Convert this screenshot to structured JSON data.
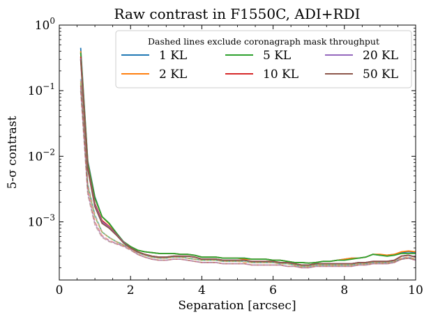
{
  "chart_data": {
    "type": "line",
    "title": "Raw contrast in F1550C, ADI+RDI",
    "xlabel": "Separation [arcsec]",
    "ylabel": "5-σ contrast",
    "xlim": [
      0,
      10
    ],
    "ylim": [
      0.00013,
      1.0
    ],
    "yscale": "log",
    "grid": false,
    "x_ticks": [
      0,
      2,
      4,
      6,
      8,
      10
    ],
    "x_tick_labels": [
      "0",
      "2",
      "4",
      "6",
      "8",
      "10"
    ],
    "y_ticks": [
      0.001,
      0.01,
      0.1,
      1
    ],
    "y_tick_labels": [
      {
        "base": "10",
        "exp": "−3"
      },
      {
        "base": "10",
        "exp": "−2"
      },
      {
        "base": "10",
        "exp": "−1"
      },
      {
        "base": "10",
        "exp": "0"
      }
    ],
    "legend": {
      "title": "Dashed lines exclude coronagraph mask throughput",
      "placement": "top-right",
      "columns": 3
    },
    "x": [
      0.6,
      0.8,
      1.0,
      1.2,
      1.4,
      1.6,
      1.8,
      2.0,
      2.2,
      2.4,
      2.6,
      2.8,
      3.0,
      3.2,
      3.4,
      3.6,
      3.8,
      4.0,
      4.2,
      4.4,
      4.6,
      4.8,
      5.0,
      5.2,
      5.4,
      5.6,
      5.8,
      6.0,
      6.2,
      6.4,
      6.6,
      6.8,
      7.0,
      7.2,
      7.4,
      7.6,
      7.8,
      8.0,
      8.2,
      8.4,
      8.6,
      8.8,
      9.0,
      9.2,
      9.4,
      9.6,
      9.8,
      10.0
    ],
    "series": [
      {
        "name": "1 KL",
        "color": "#1f77b4",
        "values": [
          0.45,
          0.0085,
          0.0024,
          0.0012,
          0.00095,
          0.00068,
          0.0005,
          0.00042,
          0.00037,
          0.00035,
          0.00034,
          0.00033,
          0.00033,
          0.00033,
          0.00032,
          0.00032,
          0.00031,
          0.00029,
          0.00029,
          0.00029,
          0.00028,
          0.00028,
          0.00028,
          0.00028,
          0.00027,
          0.00027,
          0.00027,
          0.00026,
          0.00026,
          0.00025,
          0.00024,
          0.00024,
          0.000235,
          0.00024,
          0.00025,
          0.00025,
          0.00026,
          0.00027,
          0.00028,
          0.00028,
          0.00029,
          0.00032,
          0.00031,
          0.00031,
          0.00032,
          0.00034,
          0.00035,
          0.00034
        ],
        "dashed": [
          0.15,
          0.0038,
          0.0013,
          0.0007,
          0.00058,
          0.0005,
          0.00045,
          0.0004,
          0.00034,
          0.00031,
          0.00029,
          0.00028,
          0.00028,
          0.00029,
          0.00029,
          0.00028,
          0.00027,
          0.00026,
          0.00026,
          0.00026,
          0.00025,
          0.00025,
          0.00025,
          0.00025,
          0.00024,
          0.00024,
          0.00024,
          0.00024,
          0.00023,
          0.00023,
          0.00022,
          0.00021,
          0.00021,
          0.00022,
          0.00022,
          0.00022,
          0.00022,
          0.00022,
          0.00022,
          0.00023,
          0.00023,
          0.00024,
          0.00024,
          0.00024,
          0.00025,
          0.00028,
          0.00029,
          0.00027
        ]
      },
      {
        "name": "2 KL",
        "color": "#ff7f0e",
        "values": [
          0.4,
          0.008,
          0.0023,
          0.0012,
          0.00093,
          0.00067,
          0.0005,
          0.00042,
          0.00037,
          0.00035,
          0.00034,
          0.00033,
          0.00033,
          0.00033,
          0.00032,
          0.00032,
          0.00031,
          0.00029,
          0.00029,
          0.00029,
          0.00028,
          0.00028,
          0.00028,
          0.00027,
          0.00027,
          0.00027,
          0.00027,
          0.00026,
          0.00026,
          0.00025,
          0.00024,
          0.00024,
          0.000235,
          0.00024,
          0.00025,
          0.00025,
          0.00026,
          0.00027,
          0.00028,
          0.00028,
          0.00029,
          0.00032,
          0.00032,
          0.00031,
          0.00032,
          0.00035,
          0.00036,
          0.00035
        ],
        "dashed": [
          0.14,
          0.0036,
          0.0012,
          0.0007,
          0.00057,
          0.0005,
          0.00044,
          0.00039,
          0.00034,
          0.00031,
          0.00029,
          0.00028,
          0.00028,
          0.00029,
          0.00029,
          0.00028,
          0.00027,
          0.00026,
          0.00026,
          0.00026,
          0.00025,
          0.00025,
          0.00025,
          0.00024,
          0.00024,
          0.00024,
          0.00024,
          0.00024,
          0.00023,
          0.00023,
          0.00022,
          0.00021,
          0.00021,
          0.00022,
          0.00022,
          0.00022,
          0.00022,
          0.00022,
          0.00022,
          0.00023,
          0.00023,
          0.00024,
          0.00024,
          0.00024,
          0.00025,
          0.00028,
          0.00029,
          0.00027
        ]
      },
      {
        "name": "5 KL",
        "color": "#2ca02c",
        "values": [
          0.38,
          0.0078,
          0.0023,
          0.0012,
          0.00095,
          0.00068,
          0.0005,
          0.00042,
          0.00037,
          0.00035,
          0.00034,
          0.00033,
          0.00033,
          0.00033,
          0.00032,
          0.00032,
          0.00031,
          0.00029,
          0.00029,
          0.00029,
          0.00028,
          0.00028,
          0.00028,
          0.00028,
          0.00027,
          0.00027,
          0.00027,
          0.00026,
          0.00026,
          0.00025,
          0.00024,
          0.00024,
          0.000235,
          0.00024,
          0.00025,
          0.00025,
          0.00026,
          0.00026,
          0.00027,
          0.00028,
          0.00029,
          0.00032,
          0.00031,
          0.0003,
          0.00031,
          0.00033,
          0.00033,
          0.00033
        ],
        "dashed": [
          0.13,
          0.0035,
          0.0012,
          0.0007,
          0.00058,
          0.0005,
          0.00045,
          0.0004,
          0.00034,
          0.00031,
          0.00029,
          0.00028,
          0.00028,
          0.00029,
          0.00029,
          0.00028,
          0.00027,
          0.00026,
          0.00026,
          0.00026,
          0.00025,
          0.00025,
          0.00025,
          0.00025,
          0.00024,
          0.00024,
          0.00024,
          0.00024,
          0.00023,
          0.00023,
          0.00022,
          0.00021,
          0.00021,
          0.00022,
          0.00022,
          0.00022,
          0.00022,
          0.00022,
          0.00022,
          0.00023,
          0.00023,
          0.00024,
          0.00024,
          0.00024,
          0.00025,
          0.00027,
          0.00028,
          0.00027
        ]
      },
      {
        "name": "10 KL",
        "color": "#d62728",
        "values": [
          0.33,
          0.0068,
          0.0019,
          0.00105,
          0.00085,
          0.00065,
          0.00049,
          0.0004,
          0.00035,
          0.00032,
          0.0003,
          0.00029,
          0.00029,
          0.0003,
          0.0003,
          0.0003,
          0.00029,
          0.00027,
          0.00027,
          0.00027,
          0.00026,
          0.00026,
          0.00026,
          0.00026,
          0.00025,
          0.00025,
          0.00025,
          0.00025,
          0.00024,
          0.00024,
          0.00023,
          0.00022,
          0.00022,
          0.00023,
          0.00023,
          0.00023,
          0.00023,
          0.00023,
          0.00023,
          0.00024,
          0.00024,
          0.00025,
          0.00025,
          0.00025,
          0.00026,
          0.0003,
          0.00031,
          0.00029
        ],
        "dashed": [
          0.12,
          0.003,
          0.001,
          0.00062,
          0.00052,
          0.00047,
          0.00043,
          0.00038,
          0.00032,
          0.00029,
          0.00027,
          0.00026,
          0.00026,
          0.00027,
          0.00027,
          0.00026,
          0.00025,
          0.00024,
          0.00024,
          0.00024,
          0.00023,
          0.00023,
          0.00023,
          0.00023,
          0.00022,
          0.00022,
          0.00022,
          0.00022,
          0.00022,
          0.00021,
          0.00021,
          0.0002,
          0.0002,
          0.00021,
          0.00021,
          0.00021,
          0.00021,
          0.00021,
          0.00021,
          0.00022,
          0.00022,
          0.00023,
          0.00023,
          0.00023,
          0.00024,
          0.00027,
          0.00028,
          0.00026
        ]
      },
      {
        "name": "20 KL",
        "color": "#9467bd",
        "values": [
          0.31,
          0.0065,
          0.0018,
          0.001,
          0.00083,
          0.00064,
          0.00049,
          0.0004,
          0.00035,
          0.00032,
          0.0003,
          0.00029,
          0.00029,
          0.0003,
          0.0003,
          0.0003,
          0.00029,
          0.00027,
          0.00027,
          0.00027,
          0.00026,
          0.00026,
          0.00026,
          0.00026,
          0.00025,
          0.00025,
          0.00025,
          0.00025,
          0.00024,
          0.00024,
          0.00023,
          0.00022,
          0.00022,
          0.00023,
          0.00023,
          0.00023,
          0.00023,
          0.00023,
          0.00023,
          0.00024,
          0.00024,
          0.00025,
          0.00025,
          0.00025,
          0.00026,
          0.0003,
          0.00031,
          0.00029
        ],
        "dashed": [
          0.11,
          0.0028,
          0.00095,
          0.0006,
          0.00051,
          0.00047,
          0.00043,
          0.00038,
          0.00032,
          0.00029,
          0.00027,
          0.00026,
          0.00026,
          0.00027,
          0.00027,
          0.00026,
          0.00025,
          0.00024,
          0.00024,
          0.00024,
          0.00023,
          0.00023,
          0.00023,
          0.00023,
          0.00022,
          0.00022,
          0.00022,
          0.00022,
          0.00022,
          0.00021,
          0.00021,
          0.0002,
          0.0002,
          0.00021,
          0.00021,
          0.00021,
          0.00021,
          0.00021,
          0.00021,
          0.00022,
          0.00022,
          0.00023,
          0.00023,
          0.00023,
          0.00024,
          0.00027,
          0.00028,
          0.00026
        ]
      },
      {
        "name": "50 KL",
        "color": "#8c564b",
        "values": [
          0.3,
          0.0063,
          0.0017,
          0.00095,
          0.0008,
          0.00063,
          0.00048,
          0.0004,
          0.00035,
          0.00032,
          0.0003,
          0.00029,
          0.00029,
          0.0003,
          0.0003,
          0.0003,
          0.00029,
          0.00027,
          0.00027,
          0.00027,
          0.00026,
          0.00026,
          0.00026,
          0.00026,
          0.00025,
          0.00025,
          0.00025,
          0.00025,
          0.00024,
          0.00024,
          0.00023,
          0.00022,
          0.00022,
          0.00023,
          0.00023,
          0.00023,
          0.00023,
          0.00023,
          0.00023,
          0.00024,
          0.00024,
          0.00025,
          0.00025,
          0.00025,
          0.00026,
          0.0003,
          0.00031,
          0.00029
        ],
        "dashed": [
          0.1,
          0.0026,
          0.0009,
          0.00058,
          0.0005,
          0.00046,
          0.00042,
          0.00037,
          0.00032,
          0.00029,
          0.00027,
          0.00026,
          0.00026,
          0.00027,
          0.00027,
          0.00026,
          0.00025,
          0.00024,
          0.00024,
          0.00024,
          0.00023,
          0.00023,
          0.00023,
          0.00023,
          0.00022,
          0.00022,
          0.00022,
          0.00022,
          0.00022,
          0.00021,
          0.00021,
          0.0002,
          0.0002,
          0.00021,
          0.00021,
          0.00021,
          0.00021,
          0.00021,
          0.00021,
          0.00022,
          0.00022,
          0.00023,
          0.00023,
          0.00023,
          0.00024,
          0.00027,
          0.00028,
          0.00026
        ]
      }
    ]
  }
}
